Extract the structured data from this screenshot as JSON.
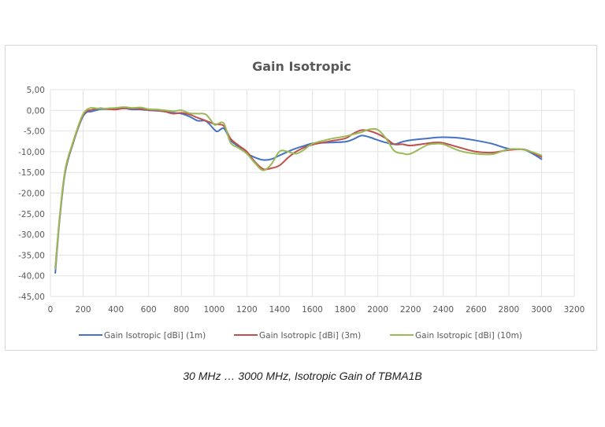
{
  "caption": "30 MHz … 3000 MHz, Isotropic Gain of TBMA1B",
  "chart_data": {
    "type": "line",
    "title": "Gain Isotropic",
    "xlabel": "",
    "ylabel": "",
    "xlim": [
      0,
      3200
    ],
    "ylim": [
      -45,
      5
    ],
    "x_ticks": [
      0,
      200,
      400,
      600,
      800,
      1000,
      1200,
      1400,
      1600,
      1800,
      2000,
      2200,
      2400,
      2600,
      2800,
      3000,
      3200
    ],
    "y_ticks": [
      5,
      0,
      -5,
      -10,
      -15,
      -20,
      -25,
      -30,
      -35,
      -40,
      -45
    ],
    "y_tick_labels": [
      "5,00",
      "0,00",
      "-5,00",
      "-10,00",
      "-15,00",
      "-20,00",
      "-25,00",
      "-30,00",
      "-35,00",
      "-40,00",
      "-45,00"
    ],
    "grid": true,
    "legend_position": "bottom",
    "x": [
      30,
      55,
      90,
      140,
      190,
      220,
      250,
      300,
      350,
      400,
      450,
      500,
      550,
      600,
      650,
      700,
      750,
      800,
      850,
      900,
      950,
      1000,
      1020,
      1060,
      1100,
      1150,
      1200,
      1250,
      1300,
      1350,
      1400,
      1450,
      1500,
      1550,
      1600,
      1700,
      1800,
      1850,
      1900,
      1950,
      2000,
      2050,
      2100,
      2150,
      2200,
      2300,
      2350,
      2400,
      2500,
      2600,
      2700,
      2800,
      2900,
      3000
    ],
    "series": [
      {
        "name": "Gain Isotropic [dBi] (1m)",
        "color": "#4472c4",
        "values": [
          -39.3,
          -27.0,
          -15.0,
          -7.8,
          -2.2,
          -0.5,
          -0.3,
          0.2,
          0.3,
          0.3,
          0.5,
          0.2,
          0.2,
          0.0,
          -0.1,
          -0.3,
          -0.6,
          -0.8,
          -1.5,
          -2.5,
          -2.6,
          -4.6,
          -5.1,
          -4.4,
          -7.2,
          -8.8,
          -10.4,
          -11.4,
          -12.0,
          -11.8,
          -10.9,
          -10.0,
          -9.2,
          -8.6,
          -8.0,
          -7.8,
          -7.6,
          -7.0,
          -6.1,
          -6.5,
          -7.2,
          -7.8,
          -8.2,
          -7.6,
          -7.2,
          -6.8,
          -6.6,
          -6.5,
          -6.7,
          -7.3,
          -8.1,
          -9.3,
          -9.6,
          -11.8
        ]
      },
      {
        "name": "Gain Isotropic [dBi] (3m)",
        "color": "#c0504d",
        "values": [
          -38.0,
          -26.6,
          -14.6,
          -7.6,
          -1.9,
          -0.2,
          0.1,
          0.5,
          0.3,
          0.2,
          0.5,
          0.4,
          0.4,
          0.1,
          0.0,
          -0.3,
          -0.8,
          -0.6,
          -1.0,
          -1.8,
          -2.5,
          -3.3,
          -3.4,
          -3.8,
          -6.8,
          -8.5,
          -10.0,
          -12.5,
          -14.2,
          -14.0,
          -13.3,
          -11.5,
          -10.0,
          -9.0,
          -8.3,
          -7.5,
          -6.8,
          -5.6,
          -4.8,
          -5.0,
          -5.7,
          -6.8,
          -8.2,
          -8.2,
          -8.5,
          -8.0,
          -7.8,
          -7.9,
          -9.0,
          -10.0,
          -10.2,
          -9.6,
          -9.5,
          -11.3
        ]
      },
      {
        "name": "Gain Isotropic [dBi] (10m)",
        "color": "#9bbb59",
        "values": [
          -38.3,
          -26.3,
          -14.4,
          -7.4,
          -1.7,
          0.1,
          0.6,
          0.4,
          0.5,
          0.6,
          0.8,
          0.6,
          0.7,
          0.3,
          0.2,
          0.0,
          -0.2,
          0.0,
          -0.7,
          -0.8,
          -1.0,
          -3.4,
          -3.3,
          -3.2,
          -7.8,
          -9.1,
          -10.5,
          -12.8,
          -14.5,
          -13.0,
          -9.9,
          -10.0,
          -10.5,
          -9.5,
          -8.1,
          -7.0,
          -6.3,
          -5.8,
          -5.3,
          -4.6,
          -4.7,
          -6.8,
          -9.8,
          -10.4,
          -10.5,
          -8.4,
          -8.1,
          -8.2,
          -9.8,
          -10.5,
          -10.6,
          -9.4,
          -9.6,
          -10.9
        ]
      }
    ]
  }
}
